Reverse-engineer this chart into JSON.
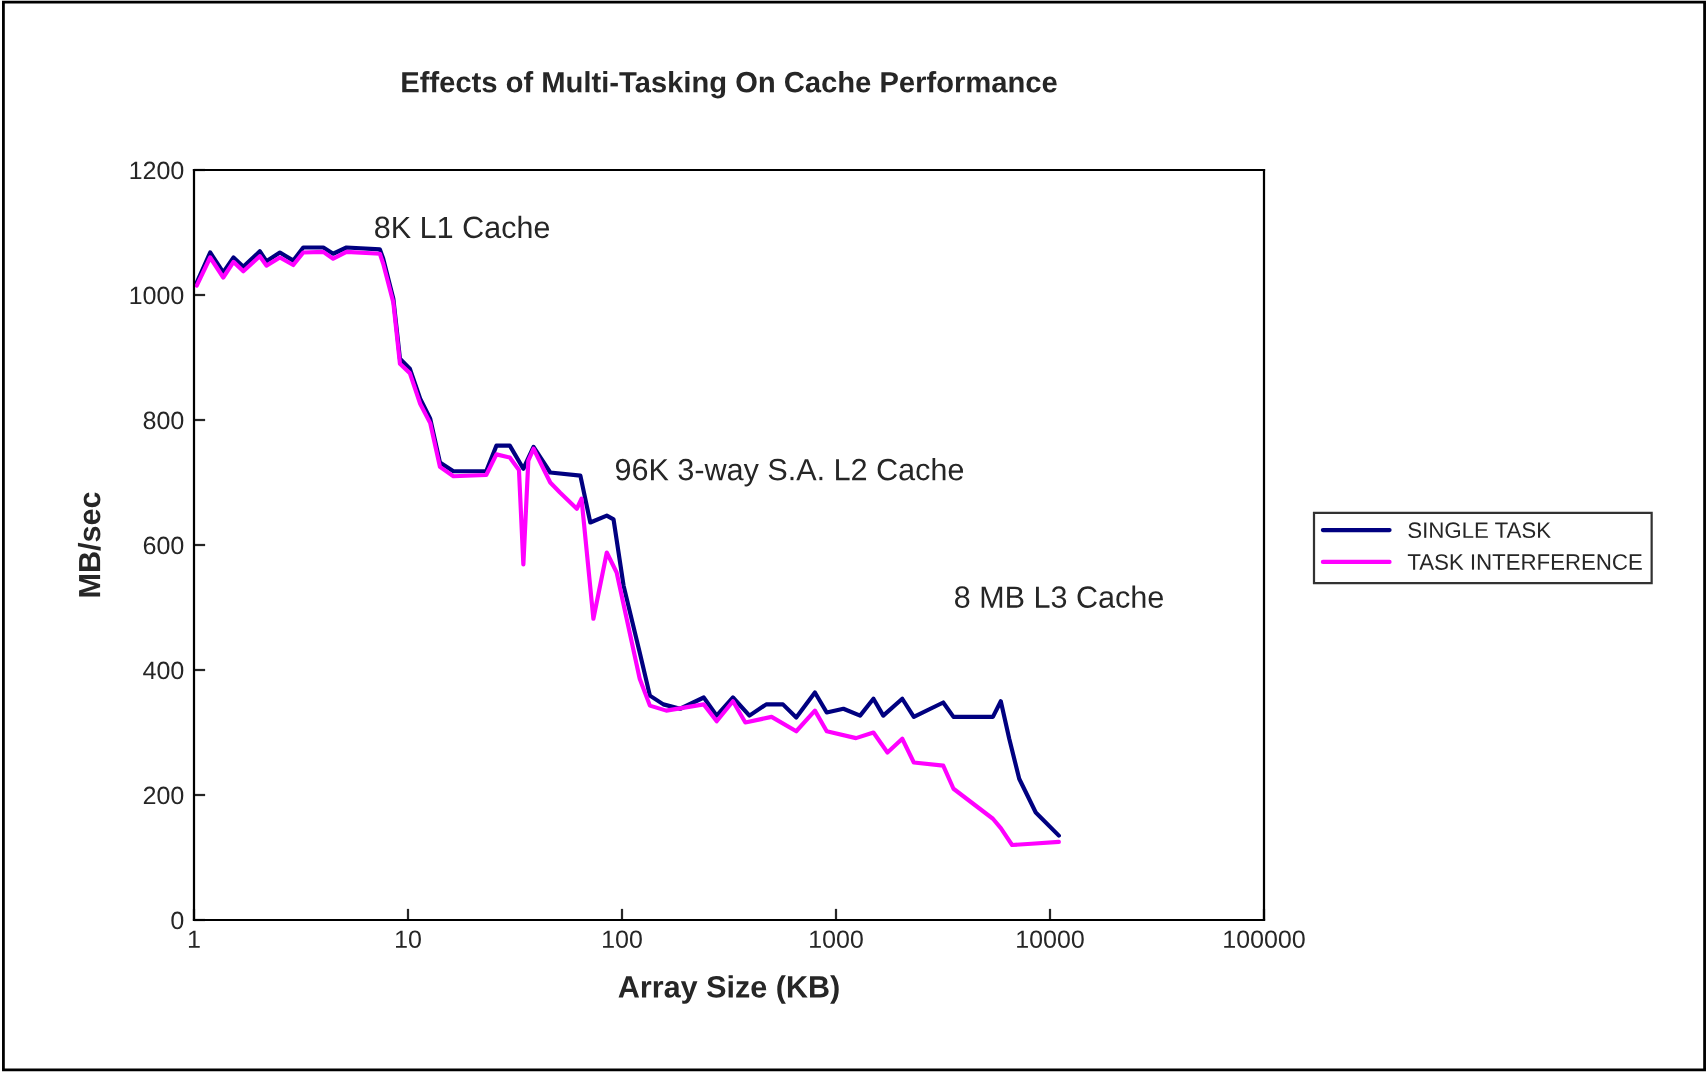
{
  "chart_data": {
    "type": "line",
    "title": "Effects of Multi-Tasking On Cache Performance",
    "xlabel": "Array Size (KB)",
    "ylabel": "MB/sec",
    "log": "x",
    "xlim": [
      1,
      100000
    ],
    "xticks": [
      1,
      10,
      100,
      1000,
      10000,
      100000
    ],
    "ylim": [
      0,
      1200
    ],
    "yticks": [
      0,
      200,
      400,
      600,
      800,
      1000,
      1200
    ],
    "grid": false,
    "legend": "right",
    "marker": "none",
    "line_style": "solid",
    "annotations": [
      "8K L1 Cache",
      "96K 3-way S.A. L2 Cache",
      "8 MB L3 Cache"
    ],
    "series": [
      {
        "name": "SINGLE TASK",
        "color": "#000080",
        "x": [
          1.03,
          1.19,
          1.37,
          1.53,
          1.7,
          2.03,
          2.18,
          2.52,
          2.91,
          3.24,
          4.02,
          4.47,
          5.16,
          7.39,
          7.66,
          8.54,
          9.17,
          10.2,
          11.4,
          12.7,
          14.1,
          16.3,
          23.2,
          25.9,
          29.9,
          34.6,
          38.6,
          46.2,
          63.9,
          71.1,
          84.9,
          91.3,
          101.7,
          121,
          135,
          156,
          187,
          241,
          277,
          330,
          394,
          472,
          565,
          652,
          797,
          905,
          1083,
          1296,
          1496,
          1663,
          2040,
          2310,
          3170,
          3540,
          5410,
          5890,
          6450,
          7180,
          8580,
          11000
        ],
        "values": [
          1020,
          1068,
          1036,
          1060,
          1045,
          1070,
          1054,
          1068,
          1055,
          1076,
          1076,
          1066,
          1076,
          1073,
          1058,
          994,
          898,
          882,
          834,
          802,
          732,
          718,
          718,
          759,
          759,
          722,
          757,
          716,
          711,
          636,
          647,
          641,
          535,
          428,
          359,
          345,
          338,
          356,
          327,
          356,
          327,
          345,
          345,
          324,
          364,
          332,
          338,
          327,
          354,
          327,
          354,
          325,
          348,
          325,
          325,
          350,
          290,
          226,
          172,
          135
        ]
      },
      {
        "name": "TASK INTERFERENCE",
        "color": "#ff00ff",
        "x": [
          1.03,
          1.19,
          1.37,
          1.53,
          1.7,
          2.03,
          2.18,
          2.52,
          2.91,
          3.24,
          4.02,
          4.47,
          5.16,
          7.39,
          7.66,
          8.54,
          9.17,
          10.2,
          11.4,
          12.7,
          14.1,
          16.3,
          23.2,
          25.9,
          29.9,
          33,
          34.6,
          36.5,
          38.6,
          46.2,
          51.3,
          61.5,
          64.7,
          73.5,
          84.9,
          94.4,
          121,
          135,
          161,
          241,
          277,
          330,
          377,
          500,
          652,
          797,
          905,
          1240,
          1496,
          1740,
          2040,
          2310,
          3170,
          3540,
          5410,
          5890,
          6650,
          8200,
          11000
        ],
        "values": [
          1015,
          1060,
          1028,
          1053,
          1038,
          1062,
          1047,
          1060,
          1048,
          1068,
          1069,
          1058,
          1069,
          1066,
          1050,
          988,
          890,
          875,
          826,
          795,
          725,
          710,
          712,
          745,
          740,
          720,
          569,
          735,
          754,
          700,
          684,
          658,
          674,
          482,
          588,
          556,
          386,
          343,
          335,
          345,
          318,
          350,
          316,
          325,
          302,
          335,
          302,
          291,
          300,
          268,
          290,
          252,
          247,
          210,
          162,
          147,
          120,
          122,
          125
        ]
      }
    ]
  }
}
